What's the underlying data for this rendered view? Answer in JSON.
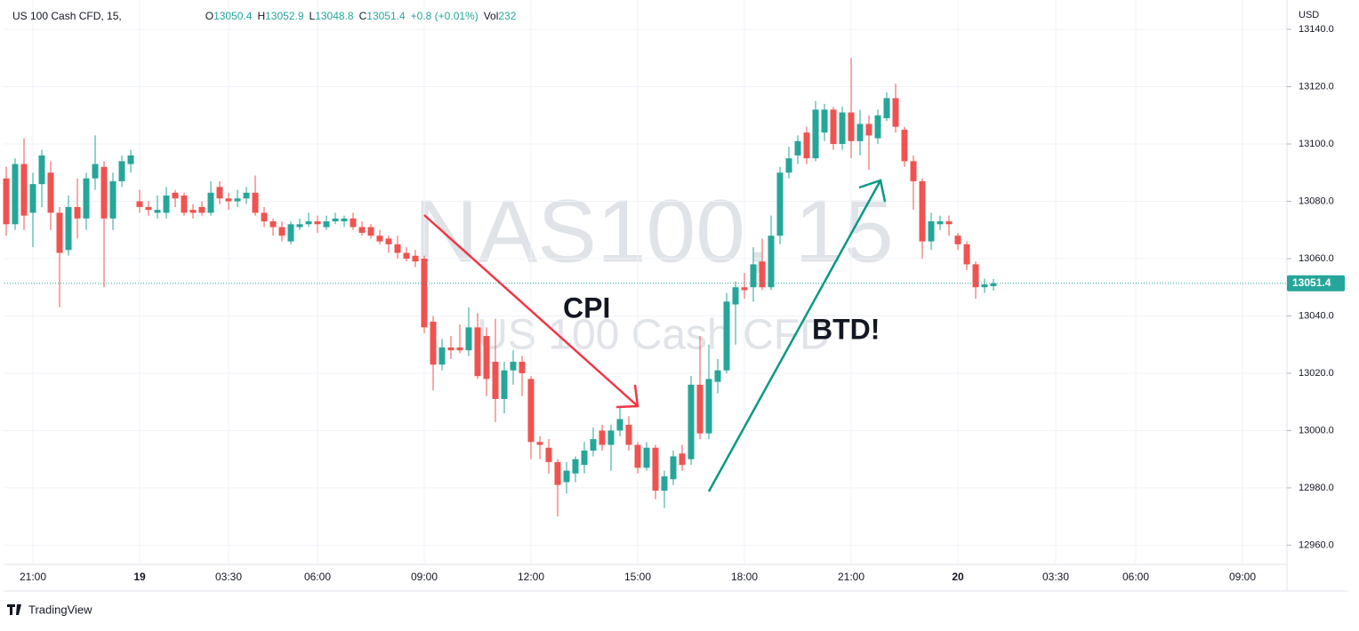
{
  "chart_data": {
    "type": "candlestick",
    "symbol": "US 100 Cash CFD, 15,",
    "legend": [
      {
        "label": "O",
        "value": 13050.4
      },
      {
        "label": "H",
        "value": 13052.9
      },
      {
        "label": "L",
        "value": 13048.8
      },
      {
        "label": "C",
        "value": 13051.4
      },
      {
        "label": "+0.8 (+0.01%)"
      },
      {
        "label": "Vol",
        "value": 232
      }
    ],
    "currency": "USD",
    "watermark": {
      "symbol": "NAS100, 15",
      "description": "US 100 Cash CFD"
    },
    "annotations": [
      "CPI",
      "BTD!"
    ],
    "footer": "TradingView",
    "up_color": "#26a69a",
    "down_color": "#ef5350",
    "last_price": {
      "value": 13051.4,
      "label": "13051.4"
    },
    "ylim": [
      12953.3,
      13148.7
    ],
    "yticks": [
      {
        "value": 12960,
        "label": "12960.0"
      },
      {
        "value": 12980,
        "label": "12980.0"
      },
      {
        "value": 13000,
        "label": "13000.0"
      },
      {
        "value": 13020,
        "label": "13020.0"
      },
      {
        "value": 13040,
        "label": "13040.0"
      },
      {
        "value": 13060,
        "label": "13060.0"
      },
      {
        "value": 13080,
        "label": "13080.0"
      },
      {
        "value": 13100,
        "label": "13100.0"
      },
      {
        "value": 13120,
        "label": "13120.0"
      },
      {
        "value": 13140,
        "label": "13140.0"
      }
    ],
    "grid": true,
    "categories": [
      null,
      null,
      null,
      "21:00",
      null,
      null,
      null,
      null,
      null,
      null,
      null,
      null,
      null,
      null,
      null,
      "19",
      null,
      null,
      null,
      null,
      null,
      null,
      null,
      null,
      null,
      "03:30",
      null,
      null,
      null,
      null,
      null,
      null,
      null,
      null,
      null,
      "06:00",
      null,
      null,
      null,
      null,
      null,
      null,
      null,
      null,
      null,
      null,
      null,
      "09:00",
      null,
      null,
      null,
      null,
      null,
      null,
      null,
      null,
      null,
      null,
      null,
      "12:00",
      null,
      null,
      null,
      null,
      null,
      null,
      null,
      null,
      null,
      null,
      null,
      "15:00",
      null,
      null,
      null,
      null,
      null,
      null,
      null,
      null,
      null,
      null,
      null,
      "18:00",
      null,
      null,
      null,
      null,
      null,
      null,
      null,
      null,
      null,
      null,
      null,
      "21:00",
      null,
      null,
      null,
      null,
      null,
      null,
      null,
      null,
      null,
      null,
      null,
      "20",
      null,
      null,
      null,
      null,
      null,
      null,
      null,
      null,
      null,
      null,
      "03:30",
      null,
      null,
      null,
      null,
      null,
      null,
      null,
      null,
      "06:00",
      null,
      null,
      null,
      null,
      null,
      null,
      null,
      null,
      null,
      null,
      null,
      "09:00",
      null,
      null,
      null,
      null,
      null
    ],
    "open": [
      13088,
      13072,
      13093,
      13076,
      13086,
      13090,
      13076,
      13063,
      13078,
      13074,
      13088,
      13092,
      13074,
      13087,
      13093,
      13080,
      13078,
      13076,
      13076,
      13083,
      13082,
      13077,
      13078,
      13076,
      13085,
      13081,
      13080,
      13081,
      13083,
      13076,
      13073,
      13071,
      13066,
      13071,
      13072,
      13073,
      13071,
      13073,
      13073,
      13074,
      13071,
      13071,
      13068,
      13067,
      13065,
      13062,
      13061,
      13060,
      13038,
      13023,
      13029,
      13029,
      13028,
      13036,
      13033,
      13024,
      13011,
      13021,
      13024,
      13018,
      12996,
      12994,
      12989,
      12982,
      12985,
      12988,
      12993,
      13000,
      12995,
      13000,
      13002,
      12995,
      12987,
      12994,
      12979,
      12983,
      12992,
      12990,
      13016,
      12999,
      13017,
      13021,
      13044,
      13050,
      13050,
      13059,
      13050,
      13068,
      13090,
      13096,
      13104,
      13095,
      13104,
      13112,
      13100,
      13111,
      13101,
      13107,
      13102,
      13109,
      13116,
      13105,
      13094,
      13087,
      13066,
      13072,
      13073,
      13068,
      13065,
      13058,
      13050,
      13050.4,
      null,
      null,
      null,
      null,
      null,
      null,
      null,
      null,
      null,
      null,
      null,
      null,
      null,
      null,
      null,
      null,
      null,
      null,
      null,
      null,
      null,
      null,
      null,
      null,
      null,
      null,
      null,
      null,
      null,
      null,
      null,
      null,
      null
    ],
    "high": [
      13092,
      13095,
      13102,
      13090,
      13098,
      13094,
      13078,
      13082,
      13088,
      13090,
      13103,
      13094,
      13090,
      13096,
      13098,
      13084,
      13080,
      13082,
      13085,
      13084,
      13083,
      13079,
      13080,
      13087,
      13087,
      13083,
      13084,
      13085,
      13089,
      13078,
      13074,
      13073,
      13073,
      13074,
      13076,
      13075,
      13075,
      13076,
      13075,
      13076,
      13073,
      13072,
      13070,
      13068,
      13068,
      13064,
      13063,
      13061,
      13040,
      13032,
      13033,
      13037,
      13043,
      13041,
      13036,
      13039,
      13024,
      13028,
      13026,
      13019,
      12998,
      12997,
      12990,
      12989,
      12991,
      12996,
      13001,
      13002,
      13002,
      13008,
      13005,
      12996,
      12996,
      12995,
      12986,
      12993,
      12995,
      13019,
      13033,
      13030,
      13025,
      13048,
      13052,
      13055,
      13064,
      13067,
      13075,
      13092,
      13099,
      13103,
      13106,
      13115,
      13114,
      13113,
      13113,
      13130,
      13112,
      13110,
      13112,
      13118,
      13121,
      13106,
      13096,
      13088,
      13076,
      13075,
      13075,
      13069,
      13066,
      13059,
      13053,
      13052.9,
      null,
      null,
      null,
      null,
      null,
      null,
      null,
      null,
      null,
      null,
      null,
      null,
      null,
      null,
      null,
      null,
      null,
      null,
      null,
      null,
      null,
      null,
      null,
      null,
      null,
      null,
      null,
      null,
      null,
      null,
      null,
      null,
      null
    ],
    "low": [
      13068,
      13070,
      13070,
      13064,
      13078,
      13070,
      13043,
      13061,
      13067,
      13070,
      13084,
      13050,
      13070,
      13085,
      13090,
      13076,
      13075,
      13074,
      13074,
      13078,
      13075,
      13074,
      13075,
      13075,
      13079,
      13077,
      13078,
      13079,
      13075,
      13071,
      13068,
      13066,
      13065,
      13070,
      13071,
      13069,
      13070,
      13072,
      13071,
      13070,
      13068,
      13067,
      13065,
      13062,
      13060,
      13059,
      13057,
      13034,
      13014,
      13021,
      13025,
      13027,
      13026,
      13018,
      13012,
      13003,
      13006,
      13016,
      13012,
      12990,
      12990,
      12985,
      12970,
      12978,
      12982,
      12985,
      12991,
      12993,
      12986,
      12998,
      12993,
      12985,
      12986,
      12976,
      12973,
      12981,
      12986,
      12988,
      12997,
      12997,
      13013,
      13020,
      13030,
      13046,
      13045,
      13049,
      13049,
      13065,
      13088,
      13093,
      13093,
      13094,
      13101,
      13098,
      13098,
      13095,
      13096,
      13091,
      13100,
      13108,
      13104,
      13092,
      13077,
      13060,
      13063,
      13070,
      13068,
      13063,
      13056,
      13046,
      13048,
      13048.8,
      null,
      null,
      null,
      null,
      null,
      null,
      null,
      null,
      null,
      null,
      null,
      null,
      null,
      null,
      null,
      null,
      null,
      null,
      null,
      null,
      null,
      null,
      null,
      null,
      null,
      null,
      null,
      null,
      null,
      null,
      null,
      null,
      null
    ],
    "close": [
      13072,
      13093,
      13075,
      13086,
      13096,
      13076,
      13062,
      13078,
      13074,
      13088,
      13093,
      13074,
      13087,
      13094,
      13096,
      13078,
      13077,
      13077,
      13082,
      13081,
      13076,
      13076,
      13076,
      13083,
      13081,
      13080,
      13081,
      13083,
      13076,
      13073,
      13071,
      13068,
      13072,
      13072,
      13073,
      13072,
      13073,
      13074,
      13074,
      13071,
      13069,
      13068,
      13066,
      13065,
      13062,
      13060,
      13059,
      13036,
      13023,
      13029,
      13028,
      13028,
      13036,
      13019,
      13018,
      13011,
      13021,
      13024,
      13020,
      12996,
      12995,
      12989,
      12981,
      12986,
      12990,
      12993,
      12997,
      12995,
      13000,
      13004,
      12995,
      12987,
      12994,
      12979,
      12984,
      12991,
      12988,
      13016,
      12999,
      13018,
      13021,
      13045,
      13050,
      13049,
      13058,
      13050,
      13068,
      13090,
      13095,
      13101,
      13095,
      13112,
      13112,
      13100,
      13111,
      13101,
      13107,
      13103,
      13110,
      13116,
      13106,
      13094,
      13087,
      13066,
      13073,
      13073,
      13072,
      13065,
      13058,
      13050,
      13051,
      13051.4,
      null,
      null,
      null,
      null,
      null,
      null,
      null,
      null,
      null,
      null,
      null,
      null,
      null,
      null,
      null,
      null,
      null,
      null,
      null,
      null,
      null,
      null,
      null,
      null,
      null,
      null,
      null,
      null,
      null,
      null,
      null,
      null,
      null
    ]
  }
}
